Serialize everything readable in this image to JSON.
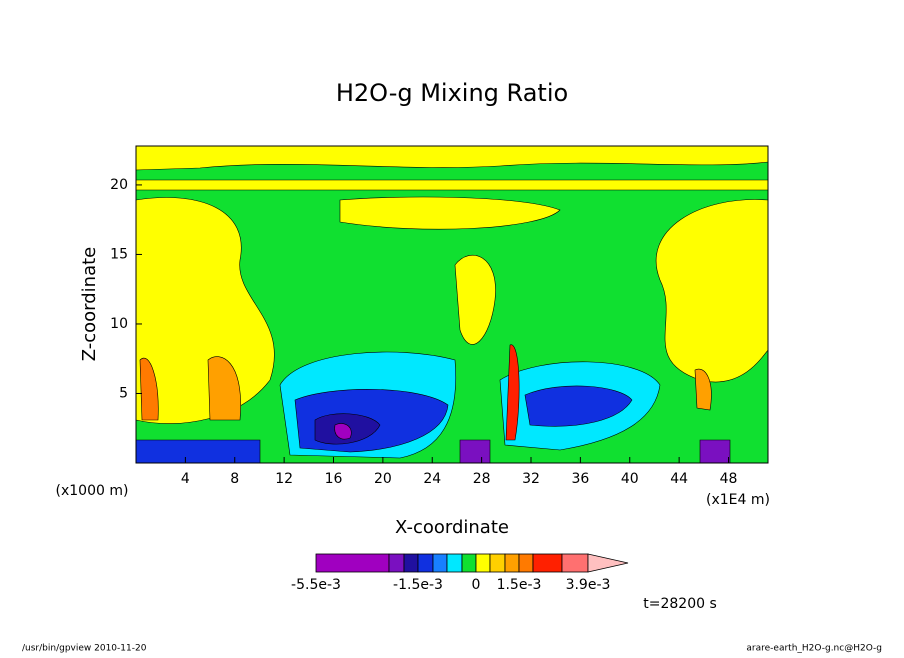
{
  "chart_data": {
    "type": "contour",
    "title": "H2O-g Mixing Ratio",
    "x_label": "X-coordinate",
    "y_label": "Z-coordinate",
    "x_unit_label": "(x1E4 m)",
    "y_unit_label": "(x1000 m)",
    "xlim": [
      0,
      51.2
    ],
    "ylim": [
      0,
      22.8
    ],
    "xticks": [
      4,
      8,
      12,
      16,
      20,
      24,
      28,
      32,
      36,
      40,
      44,
      48
    ],
    "yticks": [
      5,
      10,
      15,
      20
    ],
    "colorbar": {
      "levels": [
        -0.0055,
        -0.0025,
        -0.002,
        -0.0015,
        -0.0011,
        -0.0007,
        -0.0003,
        0,
        0.0005,
        0.001,
        0.0015,
        0.0023,
        0.0031,
        0.0039
      ],
      "colors": [
        "#a000c0",
        "#7a10c0",
        "#2010a0",
        "#1030e0",
        "#1880ff",
        "#00e8ff",
        "#10e030",
        "#ffff00",
        "#ffd000",
        "#ffa000",
        "#ff7a00",
        "#ff2000",
        "#ff7070",
        "#ffc0c0"
      ],
      "ticks": [
        {
          "value": -0.0055,
          "label": "-5.5e-3"
        },
        {
          "value": -0.0015,
          "label": "-1.5e-3"
        },
        0,
        {
          "value": 0.0015,
          "label": "1.5e-3"
        },
        {
          "value": 0.0039,
          "label": "3.9e-3"
        }
      ]
    },
    "time_label": "t=28200 s",
    "footer_left": "/usr/bin/gpview  2010-11-20",
    "footer_right": "arare-earth_H2O-g.nc@H2O-g"
  }
}
